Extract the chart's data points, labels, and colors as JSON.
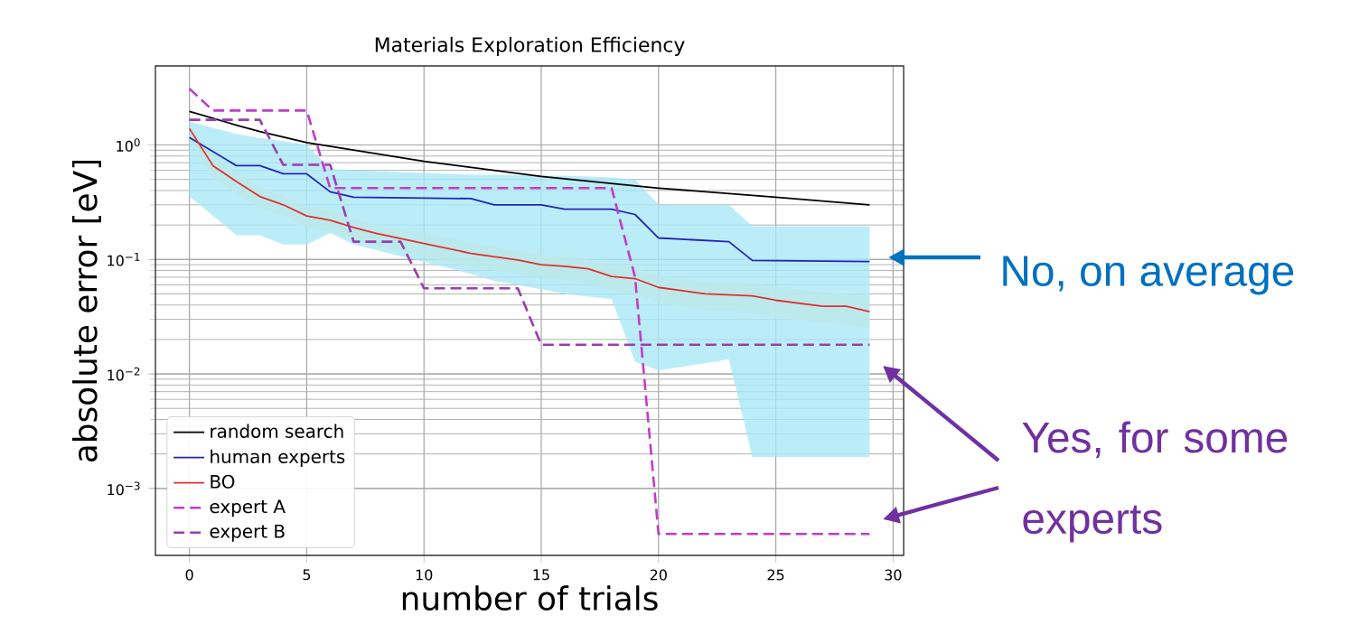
{
  "chart_data": {
    "type": "line",
    "title": "Materials Exploration Efficiency",
    "xlabel": "number of trials",
    "ylabel": "absolute error [eV]",
    "xlim": [
      -1.45,
      30.45
    ],
    "ylim": [
      0.00026,
      4.9
    ],
    "log": true,
    "grid": true,
    "legend": "bottom left",
    "marker": "none",
    "xticks": [
      0,
      5,
      10,
      15,
      20,
      25,
      30
    ],
    "yticks": [
      {
        "value": 0.001,
        "label": "10$^{−3}$"
      },
      {
        "value": 0.01,
        "label": "10$^{−2}$"
      },
      {
        "value": 0.1,
        "label": "10$^{−1}$"
      },
      {
        "value": 1,
        "label": "10$^{0}$"
      }
    ],
    "series": [
      {
        "name": "random search",
        "color": "#000000",
        "line_style": "solid",
        "x": [
          0,
          2,
          3,
          5,
          10,
          15,
          20,
          25,
          29
        ],
        "values": [
          1.96,
          1.49,
          1.31,
          1.05,
          0.72,
          0.53,
          0.42,
          0.35,
          0.3
        ]
      },
      {
        "name": "human experts",
        "color": "#2424b8",
        "line_style": "solid",
        "x": [
          0,
          2,
          3,
          4,
          5,
          6,
          7,
          12,
          13,
          15,
          16,
          18,
          19,
          20,
          23,
          24,
          29
        ],
        "values": [
          1.16,
          0.66,
          0.66,
          0.56,
          0.56,
          0.39,
          0.35,
          0.34,
          0.3,
          0.3,
          0.275,
          0.275,
          0.247,
          0.154,
          0.143,
          0.098,
          0.096
        ],
        "lower": [
          0.355,
          0.163,
          0.163,
          0.135,
          0.135,
          0.17,
          0.135,
          0.075,
          0.065,
          0.055,
          0.05,
          0.045,
          0.0128,
          0.0107,
          0.0134,
          0.00188,
          0.00188
        ],
        "upper": [
          1.6,
          1.25,
          1.15,
          1.08,
          1.0,
          0.62,
          0.6,
          0.55,
          0.55,
          0.54,
          0.54,
          0.52,
          0.5,
          0.3,
          0.3,
          0.195,
          0.195
        ]
      },
      {
        "name": "BO",
        "color": "#e03030",
        "line_style": "solid",
        "x": [
          0,
          1,
          2,
          3,
          4,
          5,
          6,
          7,
          8,
          10,
          12,
          14,
          15,
          16,
          17,
          18,
          19,
          20,
          22,
          24,
          25,
          27,
          28,
          29
        ],
        "values": [
          1.39,
          0.66,
          0.48,
          0.355,
          0.3,
          0.24,
          0.22,
          0.19,
          0.168,
          0.138,
          0.113,
          0.099,
          0.09,
          0.087,
          0.083,
          0.071,
          0.068,
          0.057,
          0.05,
          0.048,
          0.044,
          0.039,
          0.039,
          0.035
        ],
        "lower": [
          1.15,
          0.52,
          0.38,
          0.28,
          0.24,
          0.19,
          0.175,
          0.15,
          0.13,
          0.105,
          0.085,
          0.075,
          0.07,
          0.066,
          0.062,
          0.053,
          0.05,
          0.042,
          0.036,
          0.034,
          0.031,
          0.028,
          0.027,
          0.025
        ],
        "upper": [
          1.6,
          0.8,
          0.58,
          0.43,
          0.36,
          0.29,
          0.27,
          0.23,
          0.2,
          0.17,
          0.14,
          0.12,
          0.11,
          0.105,
          0.1,
          0.09,
          0.085,
          0.072,
          0.064,
          0.062,
          0.058,
          0.052,
          0.05,
          0.048
        ]
      },
      {
        "name": "expert A",
        "color": "#c03cc8",
        "line_style": "dashed",
        "x": [
          0,
          1,
          5,
          6,
          18,
          19,
          20,
          29
        ],
        "values": [
          3.1,
          2.0,
          2.0,
          0.42,
          0.42,
          0.07,
          0.0004,
          0.0004
        ]
      },
      {
        "name": "expert B",
        "color": "#9a3cb0",
        "line_style": "dashed",
        "x": [
          0,
          3,
          4,
          6,
          7,
          9,
          10,
          14,
          15,
          29
        ],
        "values": [
          1.66,
          1.66,
          0.67,
          0.67,
          0.143,
          0.143,
          0.056,
          0.056,
          0.018,
          0.018
        ]
      }
    ],
    "annotations": [
      "No, on average",
      "Yes, for some experts"
    ]
  }
}
